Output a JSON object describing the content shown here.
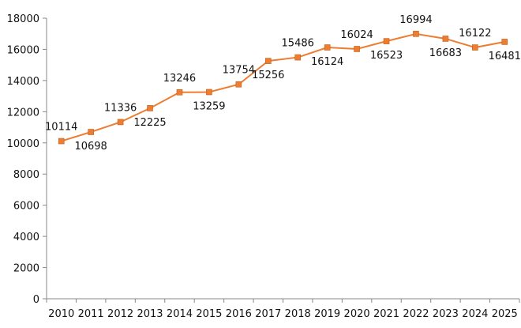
{
  "chart_data": {
    "type": "line",
    "title": "",
    "xlabel": "",
    "ylabel": "",
    "categories": [
      "2010",
      "2011",
      "2012",
      "2013",
      "2014",
      "2015",
      "2016",
      "2017",
      "2018",
      "2019",
      "2020",
      "2021",
      "2022",
      "2023",
      "2024",
      "2025"
    ],
    "series": [
      {
        "values": [
          10114,
          10698,
          11336,
          12225,
          13246,
          13259,
          13754,
          15256,
          15486,
          16124,
          16024,
          16523,
          16994,
          16683,
          16122,
          16481
        ],
        "color": "#ed7d31",
        "marker": "square"
      }
    ],
    "data_labels": [
      "10114",
      "10698",
      "11336",
      "12225",
      "13246",
      "13259",
      "13754",
      "15256",
      "15486",
      "16124",
      "16024",
      "16523",
      "16994",
      "16683",
      "16122",
      "16481"
    ],
    "y_tick_labels": [
      "0",
      "2000",
      "4000",
      "6000",
      "8000",
      "10000",
      "12000",
      "14000",
      "16000",
      "18000"
    ],
    "ylim": [
      0,
      18000
    ],
    "grid": false,
    "legend": "none"
  }
}
